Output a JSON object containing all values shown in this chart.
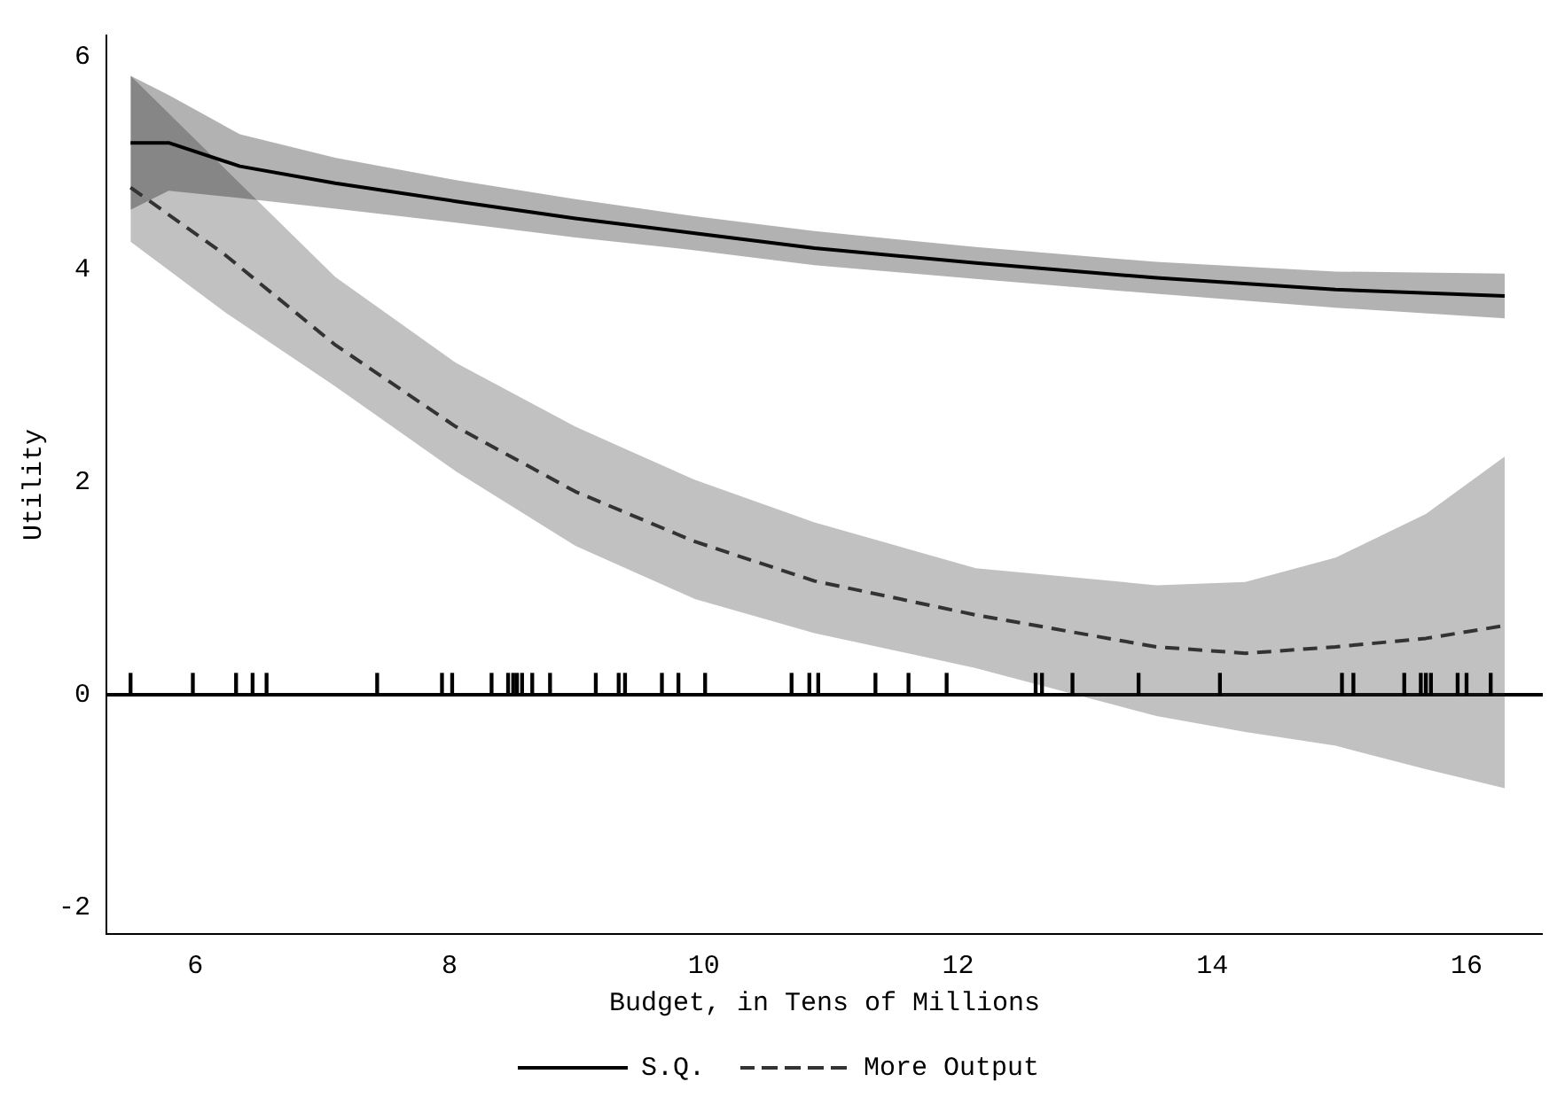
{
  "chart_data": {
    "type": "line",
    "xlabel": "Budget, in Tens of Millions",
    "ylabel": "Utility",
    "xlim": [
      5.3,
      16.6
    ],
    "xticks": [
      6,
      8,
      10,
      12,
      14,
      16
    ],
    "ylim": [
      -2.25,
      6.2
    ],
    "yticks": [
      -2,
      0,
      2,
      4,
      6
    ],
    "grid": false,
    "legend": "bottom",
    "marker": "none",
    "ref_lines": [
      {
        "axis": "y",
        "value": 0,
        "color": "#000000"
      }
    ],
    "series": [
      {
        "name": "S.Q.",
        "color": "#000000",
        "line_style": "solid",
        "x": [
          5.49,
          5.79,
          6.35,
          7.1,
          8.05,
          8.99,
          9.93,
          10.87,
          12.14,
          13.56,
          14.97,
          16.3
        ],
        "values": [
          5.19,
          5.19,
          4.97,
          4.81,
          4.64,
          4.48,
          4.34,
          4.2,
          4.06,
          3.92,
          3.81,
          3.75
        ],
        "upper": [
          5.82,
          5.64,
          5.27,
          5.05,
          4.84,
          4.66,
          4.5,
          4.36,
          4.21,
          4.07,
          3.98,
          3.96
        ],
        "lower": [
          4.56,
          4.74,
          4.67,
          4.57,
          4.44,
          4.3,
          4.18,
          4.04,
          3.91,
          3.77,
          3.64,
          3.54
        ]
      },
      {
        "name": "More Output",
        "color": "#333333",
        "line_style": "dashed",
        "x": [
          5.49,
          6.23,
          7.1,
          8.05,
          8.99,
          9.93,
          10.87,
          12.14,
          13.56,
          14.26,
          14.97,
          15.68,
          16.3
        ],
        "values": [
          4.77,
          4.14,
          3.29,
          2.52,
          1.91,
          1.44,
          1.07,
          0.75,
          0.45,
          0.39,
          0.45,
          0.53,
          0.65
        ],
        "upper": [
          5.82,
          4.95,
          3.93,
          3.12,
          2.52,
          2.02,
          1.62,
          1.19,
          1.03,
          1.06,
          1.29,
          1.7,
          2.24
        ],
        "lower": [
          4.26,
          3.6,
          2.9,
          2.1,
          1.4,
          0.9,
          0.58,
          0.25,
          -0.2,
          -0.35,
          -0.48,
          -0.7,
          -0.88
        ]
      },
      {
        "type": "bar",
        "color": "#000000",
        "x": [
          5.49,
          5.98,
          6.32,
          6.45,
          6.56,
          7.43,
          7.94,
          8.02,
          8.33,
          8.46,
          8.5,
          8.53,
          8.57,
          8.65,
          8.79,
          9.15,
          9.33,
          9.38,
          9.67,
          9.8,
          10.01,
          10.69,
          10.83,
          10.9,
          11.35,
          11.61,
          11.91,
          12.61,
          12.66,
          12.9,
          13.42,
          14.06,
          15.02,
          15.11,
          15.51,
          15.64,
          15.68,
          15.72,
          15.93,
          16.0,
          16.19
        ],
        "values": [
          0.2,
          0.2,
          0.2,
          0.2,
          0.2,
          0.2,
          0.2,
          0.2,
          0.2,
          0.2,
          0.2,
          0.2,
          0.2,
          0.2,
          0.2,
          0.2,
          0.2,
          0.2,
          0.2,
          0.2,
          0.2,
          0.2,
          0.2,
          0.2,
          0.2,
          0.2,
          0.2,
          0.2,
          0.2,
          0.2,
          0.2,
          0.2,
          0.2,
          0.2,
          0.2,
          0.2,
          0.2,
          0.2,
          0.2,
          0.2,
          0.2
        ]
      }
    ]
  }
}
